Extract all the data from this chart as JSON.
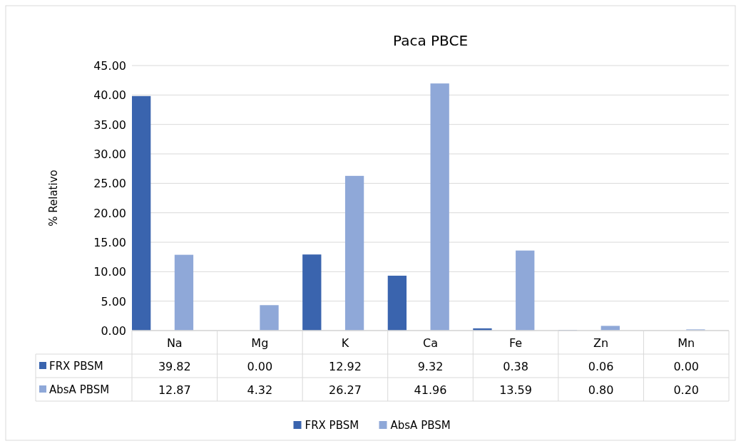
{
  "chart_data": {
    "type": "bar",
    "title": "Paca PBCE",
    "ylabel": "% Relativo",
    "categories": [
      "Na",
      "Mg",
      "K",
      "Ca",
      "Fe",
      "Zn",
      "Mn"
    ],
    "series": [
      {
        "name": "FRX PBSM",
        "color": "#3a64ae",
        "values": [
          39.82,
          0.0,
          12.92,
          9.32,
          0.38,
          0.06,
          0.0
        ],
        "value_labels": [
          "39.82",
          "0.00",
          "12.92",
          "9.32",
          "0.38",
          "0.06",
          "0.00"
        ]
      },
      {
        "name": "AbsA PBSM",
        "color": "#8fa8d8",
        "values": [
          12.87,
          4.32,
          26.27,
          41.96,
          13.59,
          0.8,
          0.2
        ],
        "value_labels": [
          "12.87",
          "4.32",
          "26.27",
          "41.96",
          "13.59",
          "0.80",
          "0.20"
        ]
      }
    ],
    "ylim": [
      0,
      45
    ],
    "yticks": [
      {
        "value": 0,
        "label": "0.00"
      },
      {
        "value": 5,
        "label": "5.00"
      },
      {
        "value": 10,
        "label": "10.00"
      },
      {
        "value": 15,
        "label": "15.00"
      },
      {
        "value": 20,
        "label": "20.00"
      },
      {
        "value": 25,
        "label": "25.00"
      },
      {
        "value": 30,
        "label": "30.00"
      },
      {
        "value": 35,
        "label": "35.00"
      },
      {
        "value": 40,
        "label": "40.00"
      },
      {
        "value": 45,
        "label": "45.00"
      }
    ],
    "grid": "y",
    "legend": "bottom"
  }
}
